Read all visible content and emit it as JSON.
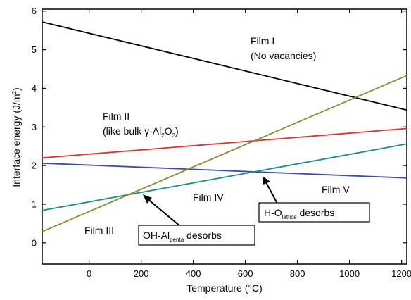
{
  "chart_data": {
    "type": "line",
    "title": "",
    "xlabel": "Temperature (°C)",
    "ylabel_parts": {
      "text": "Interface energy (J/m",
      "sup": "2",
      "close": ")"
    },
    "xlim": [
      -180,
      1220
    ],
    "ylim": [
      -0.55,
      6.05
    ],
    "x_ticks": [
      0,
      200,
      400,
      600,
      800,
      1000,
      1200
    ],
    "y_ticks": [
      0,
      1,
      2,
      3,
      4,
      5,
      6
    ],
    "grid": false,
    "legend": "none",
    "series": [
      {
        "color": "#000000",
        "x": [
          -180,
          1220
        ],
        "y": [
          5.72,
          3.44
        ]
      },
      {
        "color": "#e03030",
        "x": [
          -180,
          1220
        ],
        "y": [
          2.2,
          2.96
        ]
      },
      {
        "color": "#3a4aa8",
        "x": [
          -180,
          1220
        ],
        "y": [
          2.06,
          1.68
        ]
      },
      {
        "color": "#1f8c8c",
        "x": [
          -180,
          1220
        ],
        "y": [
          0.84,
          2.56
        ]
      },
      {
        "color": "#8a8a3a",
        "x": [
          -180,
          1220
        ],
        "y": [
          0.29,
          4.33
        ]
      }
    ],
    "labels": {
      "film1_line1": "Film I",
      "film1_line2": "(No vacancies)",
      "film2_line1": "Film II",
      "film2_line2_pre": "(like bulk γ-Al",
      "film2_sub1": "2",
      "film2_mid": "O",
      "film2_sub2": "3",
      "film2_close": ")",
      "film3": "Film III",
      "film4": "Film IV",
      "film5": "Film V",
      "box1_pre": "OH-Al",
      "box1_sub": "penta",
      "box1_post": " desorbs",
      "box2_pre": "H-O",
      "box2_sub": "lattice",
      "box2_post": " desorbs"
    }
  }
}
